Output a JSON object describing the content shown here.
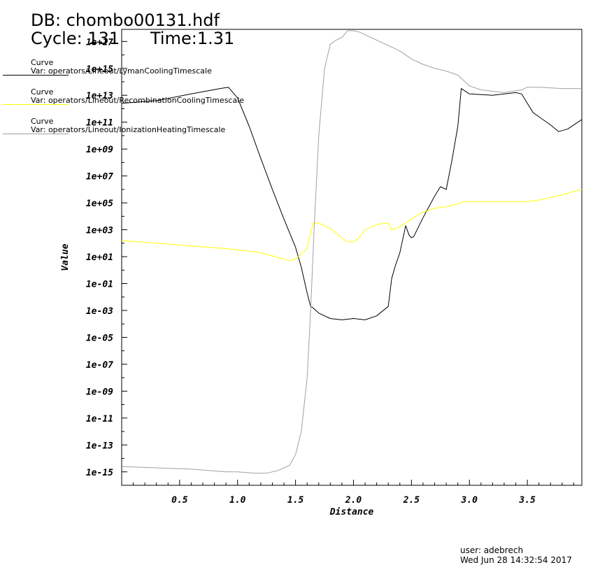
{
  "header": {
    "db": "DB: chombo00131.hdf",
    "cycle": "Cycle: 131",
    "time": "Time:1.31"
  },
  "legend": [
    {
      "title": "Curve",
      "var": "Var: operators/Lineout/LymanCoolingTimescale",
      "color": "#000000"
    },
    {
      "title": "Curve",
      "var": "Var: operators/Lineout/RecombinationCoolingTimescale",
      "color": "#ffff00"
    },
    {
      "title": "Curve",
      "var": "Var: operators/Lineout/IonizationHeatingTimescale",
      "color": "#a0a0a0"
    }
  ],
  "footer": {
    "user": "user: adebrech",
    "date": "Wed Jun 28 14:32:54 2017"
  },
  "chart_data": {
    "type": "line",
    "xlabel": "Distance",
    "ylabel": "Value",
    "yscale": "log",
    "xlim": [
      0,
      3.97
    ],
    "ylim": [
      -16,
      17.9
    ],
    "x_ticks": [
      "0.5",
      "1.0",
      "1.5",
      "2.0",
      "2.5",
      "3.0",
      "3.5"
    ],
    "y_ticks": [
      "1e+17",
      "1e+15",
      "1e+13",
      "1e+11",
      "1e+09",
      "1e+07",
      "1e+05",
      "1e+03",
      "1e+01",
      "1e-01",
      "1e-03",
      "1e-05",
      "1e-07",
      "1e-09",
      "1e-11",
      "1e-13",
      "1e-15"
    ],
    "series": [
      {
        "name": "LymanCoolingTimescale",
        "color": "#000000",
        "x": [
          0.0,
          0.3,
          0.6,
          0.85,
          0.92,
          1.0,
          1.1,
          1.2,
          1.3,
          1.4,
          1.5,
          1.55,
          1.6,
          1.63,
          1.65,
          1.7,
          1.8,
          1.9,
          2.0,
          2.1,
          2.2,
          2.3,
          2.33,
          2.36,
          2.4,
          2.45,
          2.48,
          2.5,
          2.52,
          2.6,
          2.7,
          2.75,
          2.8,
          2.85,
          2.9,
          2.93,
          3.0,
          3.2,
          3.4,
          3.45,
          3.5,
          3.55,
          3.6,
          3.7,
          3.77,
          3.85,
          3.97
        ],
        "y": [
          12.4,
          12.6,
          13.1,
          13.5,
          13.6,
          12.8,
          10.7,
          8.3,
          6.0,
          3.8,
          1.7,
          0.2,
          -1.7,
          -2.7,
          -2.8,
          -3.2,
          -3.6,
          -3.7,
          -3.6,
          -3.7,
          -3.4,
          -2.7,
          -0.6,
          0.3,
          1.3,
          3.3,
          2.6,
          2.4,
          2.5,
          3.9,
          5.5,
          6.2,
          6.0,
          8.2,
          10.7,
          13.5,
          13.1,
          13.0,
          13.2,
          13.1,
          12.4,
          11.7,
          11.4,
          10.8,
          10.3,
          10.5,
          11.2
        ]
      },
      {
        "name": "RecombinationCoolingTimescale",
        "color": "#ffff00",
        "x": [
          0.0,
          0.3,
          0.6,
          0.9,
          1.2,
          1.45,
          1.5,
          1.6,
          1.65,
          1.7,
          1.8,
          1.9,
          1.95,
          2.0,
          2.05,
          2.1,
          2.2,
          2.3,
          2.33,
          2.36,
          2.4,
          2.5,
          2.6,
          2.7,
          2.8,
          2.9,
          2.95,
          3.1,
          3.3,
          3.5,
          3.6,
          3.8,
          3.97
        ],
        "y": [
          2.2,
          2.0,
          1.8,
          1.6,
          1.3,
          0.7,
          0.8,
          1.6,
          3.5,
          3.5,
          3.1,
          2.4,
          2.1,
          2.1,
          2.4,
          3.0,
          3.4,
          3.5,
          3.0,
          3.1,
          3.2,
          3.8,
          4.3,
          4.6,
          4.7,
          4.9,
          5.1,
          5.1,
          5.1,
          5.1,
          5.2,
          5.6,
          6.0
        ]
      },
      {
        "name": "IonizationHeatingTimescale",
        "color": "#a0a0a0",
        "x": [
          0.0,
          0.3,
          0.6,
          0.9,
          1.0,
          1.15,
          1.25,
          1.35,
          1.45,
          1.5,
          1.55,
          1.6,
          1.63,
          1.66,
          1.7,
          1.75,
          1.8,
          1.85,
          1.9,
          1.95,
          2.0,
          2.05,
          2.1,
          2.2,
          2.3,
          2.4,
          2.5,
          2.6,
          2.7,
          2.8,
          2.9,
          3.0,
          3.1,
          3.3,
          3.45,
          3.5,
          3.6,
          3.8,
          3.97
        ],
        "y": [
          -14.6,
          -14.7,
          -14.8,
          -15.0,
          -15.0,
          -15.1,
          -15.1,
          -14.9,
          -14.5,
          -13.7,
          -12.0,
          -8.0,
          -3.0,
          3.0,
          10.0,
          15.0,
          16.8,
          17.1,
          17.3,
          17.8,
          17.8,
          17.7,
          17.5,
          17.1,
          16.7,
          16.3,
          15.7,
          15.3,
          15.0,
          14.8,
          14.5,
          13.7,
          13.4,
          13.2,
          13.4,
          13.6,
          13.6,
          13.5,
          13.5
        ]
      }
    ]
  }
}
